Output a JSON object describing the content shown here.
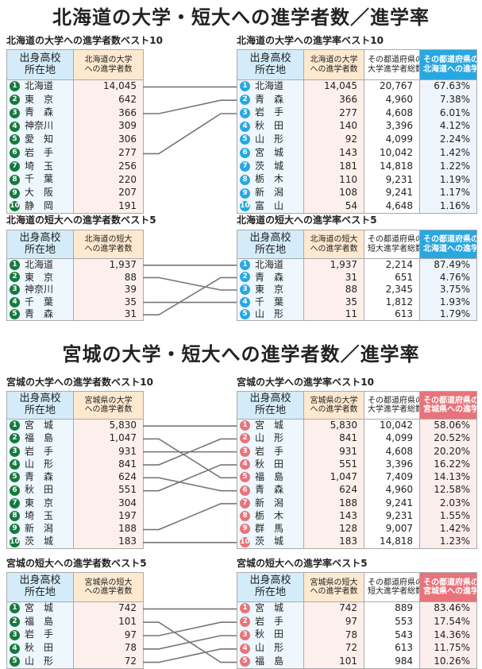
{
  "titles": [
    "北海道の大学・短大への進学者数／進学率",
    "宮城の大学・短大への進学者数／進学率"
  ],
  "colors": {
    "green": "#157a3c",
    "blue": "#29a7e1",
    "pink": "#e8737a",
    "hdr_blue": "#d4ecf9",
    "hdr_peach": "#fde9d0",
    "body_blue": "#eef7fd",
    "body_peach": "#fdf0ec"
  },
  "sections": [
    {
      "left_title": "北海道の大学への進学者数ベスト10",
      "right_title": "北海道の大学への進学率ベスト10",
      "left_headers": [
        "出身高校\n所在地",
        "北海道の大学\nへの進学者数"
      ],
      "right_headers": [
        "出身高校\n所在地",
        "北海道の大学\nへの進学者数",
        "その都道府県の\n大学進学者総数",
        "その都道府県の\n北海道への進学率"
      ],
      "left_rows": [
        [
          "北海道",
          "14,045",
          1
        ],
        [
          "東　京",
          "642",
          null
        ],
        [
          "青　森",
          "366",
          2
        ],
        [
          "神奈川",
          "309",
          null
        ],
        [
          "愛　知",
          "306",
          null
        ],
        [
          "岩　手",
          "277",
          3
        ],
        [
          "埼　玉",
          "256",
          null
        ],
        [
          "千　葉",
          "220",
          null
        ],
        [
          "大　阪",
          "207",
          null
        ],
        [
          "静　岡",
          "191",
          null
        ]
      ],
      "right_rows": [
        [
          "北海道",
          "14,045",
          "20,767",
          "67.63%"
        ],
        [
          "青　森",
          "366",
          "4,960",
          "7.38%"
        ],
        [
          "岩　手",
          "277",
          "4,608",
          "6.01%"
        ],
        [
          "秋　田",
          "140",
          "3,396",
          "4.12%"
        ],
        [
          "山　形",
          "92",
          "4,099",
          "2.24%"
        ],
        [
          "宮　城",
          "143",
          "10,042",
          "1.42%"
        ],
        [
          "茨　城",
          "181",
          "14,818",
          "1.22%"
        ],
        [
          "栃　木",
          "110",
          "9,231",
          "1.19%"
        ],
        [
          "新　潟",
          "108",
          "9,241",
          "1.17%"
        ],
        [
          "富　山",
          "54",
          "4,648",
          "1.16%"
        ]
      ]
    },
    {
      "left_title": "北海道の短大への進学者数ベスト5",
      "right_title": "北海道の短大への進学率ベスト5",
      "left_headers": [
        "出身高校\n所在地",
        "北海道の短大\nへの進学者数"
      ],
      "right_headers": [
        "出身高校\n所在地",
        "北海道の短大\nへの進学者数",
        "その都道府県の\n短大進学者総数",
        "その都道府県の\n北海道への進学率"
      ],
      "left_rows": [
        [
          "北海道",
          "1,937",
          1
        ],
        [
          "東　京",
          "88",
          3
        ],
        [
          "神奈川",
          "39",
          null
        ],
        [
          "千　葉",
          "35",
          4
        ],
        [
          "青　森",
          "31",
          2
        ]
      ],
      "right_rows": [
        [
          "北海道",
          "1,937",
          "2,214",
          "87.49%"
        ],
        [
          "青　森",
          "31",
          "651",
          "4.76%"
        ],
        [
          "東　京",
          "88",
          "2,345",
          "3.75%"
        ],
        [
          "千　葉",
          "35",
          "1,812",
          "1.93%"
        ],
        [
          "山　形",
          "11",
          "613",
          "1.79%"
        ]
      ]
    },
    {
      "left_title": "宮城の大学への進学者数ベスト10",
      "right_title": "宮城の大学への進学率ベスト10",
      "left_headers": [
        "出身高校\n所在地",
        "宮城県の大学\nへの進学者数"
      ],
      "right_headers": [
        "出身高校\n所在地",
        "宮城県の大学\nへの進学者数",
        "その都道府県の\n大学進学者総数",
        "その都道府県の\n宮城県への進学率"
      ],
      "left_rows": [
        [
          "宮　城",
          "5,830",
          1
        ],
        [
          "福　島",
          "1,047",
          5
        ],
        [
          "岩　手",
          "931",
          3
        ],
        [
          "山　形",
          "841",
          2
        ],
        [
          "青　森",
          "624",
          6
        ],
        [
          "秋　田",
          "551",
          4
        ],
        [
          "東　京",
          "304",
          null
        ],
        [
          "埼　玉",
          "197",
          null
        ],
        [
          "新　潟",
          "188",
          7
        ],
        [
          "茨　城",
          "183",
          10
        ]
      ],
      "right_rows": [
        [
          "宮　城",
          "5,830",
          "10,042",
          "58.06%"
        ],
        [
          "山　形",
          "841",
          "4,099",
          "20.52%"
        ],
        [
          "岩　手",
          "931",
          "4,608",
          "20.20%"
        ],
        [
          "秋　田",
          "551",
          "3,396",
          "16.22%"
        ],
        [
          "福　島",
          "1,047",
          "7,409",
          "14.13%"
        ],
        [
          "青　森",
          "624",
          "4,960",
          "12.58%"
        ],
        [
          "新　潟",
          "188",
          "9,241",
          "2.03%"
        ],
        [
          "栃　木",
          "143",
          "9,231",
          "1.55%"
        ],
        [
          "群　馬",
          "128",
          "9,007",
          "1.42%"
        ],
        [
          "茨　城",
          "183",
          "14,818",
          "1.23%"
        ]
      ]
    },
    {
      "left_title": "宮城の短大への進学者数ベスト5",
      "right_title": "宮城の短大への進学率ベスト5",
      "left_headers": [
        "出身高校\n所在地",
        "宮城県の短大\nへの進学者数"
      ],
      "right_headers": [
        "出身高校\n所在地",
        "宮城県の短大\nへの進学者数",
        "その都道府県の\n短大進学者総数",
        "その都道府県の\n宮城県への進学率"
      ],
      "left_rows": [
        [
          "宮　城",
          "742",
          1
        ],
        [
          "福　島",
          "101",
          5
        ],
        [
          "岩　手",
          "97",
          2
        ],
        [
          "秋　田",
          "78",
          3
        ],
        [
          "山　形",
          "72",
          4
        ]
      ],
      "right_rows": [
        [
          "宮　城",
          "742",
          "889",
          "83.46%"
        ],
        [
          "岩　手",
          "97",
          "553",
          "17.54%"
        ],
        [
          "秋　田",
          "78",
          "543",
          "14.36%"
        ],
        [
          "山　形",
          "72",
          "613",
          "11.75%"
        ],
        [
          "福　島",
          "101",
          "984",
          "10.26%"
        ]
      ]
    }
  ]
}
